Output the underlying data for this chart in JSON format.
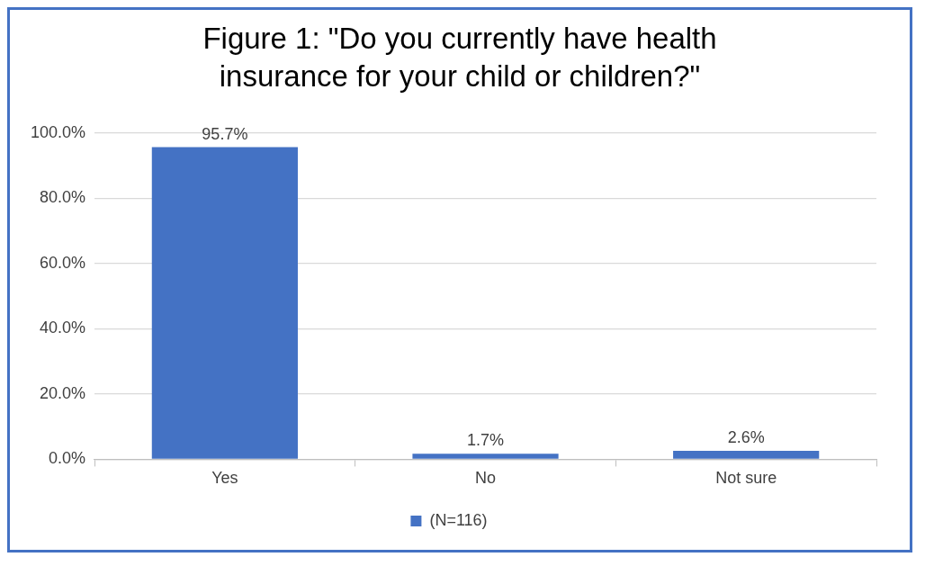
{
  "chart_data": {
    "type": "bar",
    "title": "Figure 1: \"Do you currently have health insurance for your child or children?\"",
    "categories": [
      "Yes",
      "No",
      "Not sure"
    ],
    "series": [
      {
        "name": "(N=116)",
        "color": "#4472c4",
        "values": [
          95.7,
          1.7,
          2.6
        ],
        "value_labels": [
          "95.7%",
          "1.7%",
          "2.6%"
        ]
      }
    ],
    "ylim": [
      0,
      100
    ],
    "yticks": [
      {
        "value": 0,
        "label": "0.0%"
      },
      {
        "value": 20,
        "label": "20.0%"
      },
      {
        "value": 40,
        "label": "40.0%"
      },
      {
        "value": 60,
        "label": "60.0%"
      },
      {
        "value": 80,
        "label": "80.0%"
      },
      {
        "value": 100,
        "label": "100.0%"
      }
    ],
    "grid": "y",
    "legend": "bottom"
  }
}
